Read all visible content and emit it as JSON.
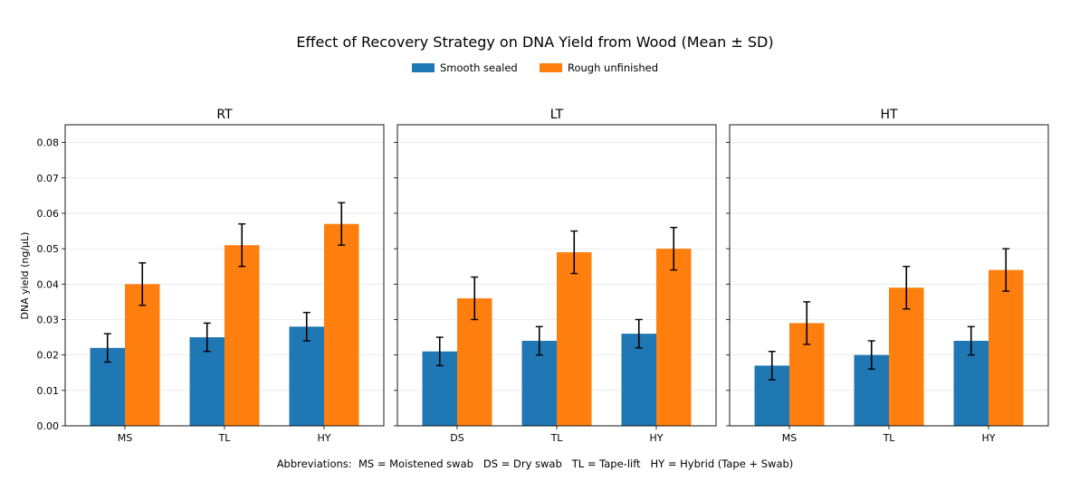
{
  "chart_data": {
    "type": "bar",
    "title": "Effect of Recovery Strategy on DNA Yield from Wood (Mean ± SD)",
    "ylabel": "DNA yield (ng/µL)",
    "ylim": [
      0,
      0.085
    ],
    "yticks": [
      "0.00",
      "0.01",
      "0.02",
      "0.03",
      "0.04",
      "0.05",
      "0.06",
      "0.07",
      "0.08"
    ],
    "grid": true,
    "legend": {
      "placement": "top-center",
      "entries": [
        {
          "name": "Smooth sealed",
          "color": "#1f77b4"
        },
        {
          "name": "Rough unfinished",
          "color": "#ff7f0e"
        }
      ]
    },
    "panels": [
      {
        "title": "RT",
        "categories": [
          "MS",
          "TL",
          "HY"
        ],
        "series": [
          {
            "name": "Smooth sealed",
            "values": [
              0.022,
              0.025,
              0.028
            ],
            "sd": [
              0.004,
              0.004,
              0.004
            ]
          },
          {
            "name": "Rough unfinished",
            "values": [
              0.04,
              0.051,
              0.057
            ],
            "sd": [
              0.006,
              0.006,
              0.006
            ]
          }
        ]
      },
      {
        "title": "LT",
        "categories": [
          "DS",
          "TL",
          "HY"
        ],
        "series": [
          {
            "name": "Smooth sealed",
            "values": [
              0.021,
              0.024,
              0.026
            ],
            "sd": [
              0.004,
              0.004,
              0.004
            ]
          },
          {
            "name": "Rough unfinished",
            "values": [
              0.036,
              0.049,
              0.05
            ],
            "sd": [
              0.006,
              0.006,
              0.006
            ]
          }
        ]
      },
      {
        "title": "HT",
        "categories": [
          "MS",
          "TL",
          "HY"
        ],
        "series": [
          {
            "name": "Smooth sealed",
            "values": [
              0.017,
              0.02,
              0.024
            ],
            "sd": [
              0.004,
              0.004,
              0.004
            ]
          },
          {
            "name": "Rough unfinished",
            "values": [
              0.029,
              0.039,
              0.044
            ],
            "sd": [
              0.006,
              0.006,
              0.006
            ]
          }
        ]
      }
    ],
    "footnote": "Abbreviations:  MS = Moistened swab   DS = Dry swab   TL = Tape-lift   HY = Hybrid (Tape + Swab)"
  }
}
